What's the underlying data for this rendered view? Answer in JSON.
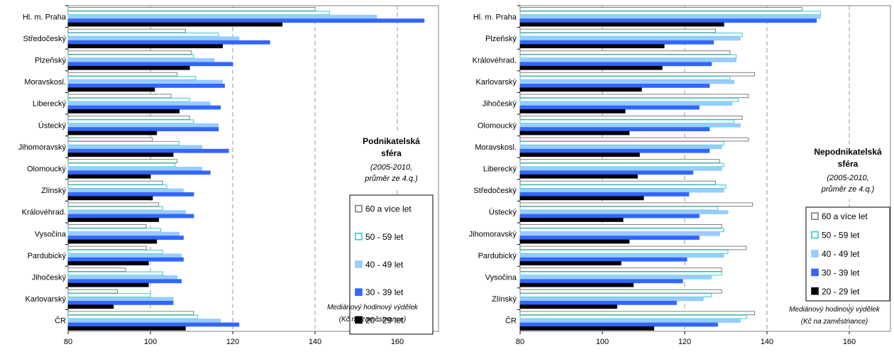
{
  "chart_data": [
    {
      "type": "bar",
      "orientation": "horizontal",
      "title": "Podnikatelská sféra",
      "subtitle": [
        "(2005-2010,",
        "průměr ze 4.q.)"
      ],
      "note": [
        "Mediánový hodinový výdělek",
        "(Kč na zaměstnance)"
      ],
      "xlim": [
        80,
        170
      ],
      "xticks": [
        80,
        100,
        120,
        140,
        160
      ],
      "grid": "vertical dashed",
      "categories": [
        "Hl. m. Praha",
        "Středočeský",
        "Plzeňský",
        "Moravskosl.",
        "Liberecký",
        "Ústecký",
        "Jihomoravský",
        "Olomoucký",
        "Zlínský",
        "Královéhrad.",
        "Vysočina",
        "Pardubický",
        "Jihočeský",
        "Karlovarský",
        "ČR"
      ],
      "series": [
        {
          "name": "60 a více let",
          "values": [
            140.0,
            108.5,
            110.0,
            106.5,
            105.0,
            109.5,
            100.5,
            106.5,
            103.0,
            102.0,
            99.0,
            99.0,
            94.0,
            92.0,
            110.5
          ]
        },
        {
          "name": "50 - 59 let",
          "values": [
            143.5,
            116.5,
            110.5,
            111.0,
            109.5,
            110.5,
            107.0,
            106.0,
            104.0,
            103.0,
            102.5,
            103.0,
            103.0,
            100.0,
            111.5
          ]
        },
        {
          "name": "40 - 49 let",
          "values": [
            155.0,
            121.5,
            115.5,
            117.5,
            114.5,
            116.5,
            112.5,
            112.5,
            108.0,
            108.5,
            107.0,
            107.5,
            106.5,
            105.5,
            117.0
          ]
        },
        {
          "name": "30 - 39 let",
          "values": [
            166.5,
            129.0,
            120.0,
            118.0,
            117.0,
            116.5,
            119.0,
            114.5,
            110.5,
            110.5,
            108.0,
            108.0,
            107.5,
            105.5,
            121.5
          ]
        },
        {
          "name": "20 - 29 let",
          "values": [
            132.0,
            117.5,
            109.5,
            101.0,
            107.0,
            101.5,
            105.5,
            100.0,
            100.5,
            102.0,
            101.5,
            99.5,
            99.5,
            91.0,
            108.5
          ]
        }
      ],
      "legend": "right"
    },
    {
      "type": "bar",
      "orientation": "horizontal",
      "title": "Nepodnikatelská sféra",
      "subtitle": [
        "(2005-2010,",
        "průměr ze 4.q.)"
      ],
      "note": [
        "Mediánový hodinový výdělek",
        "(Kč na zaměstnance)"
      ],
      "xlim": [
        80,
        170
      ],
      "xticks": [
        80,
        100,
        120,
        140,
        160
      ],
      "grid": "vertical dashed",
      "categories": [
        "Hl. m. Praha",
        "Plzeňský",
        "Královéhrad.",
        "Karlovarský",
        "Jihočeský",
        "Olomoucký",
        "Moravskosl.",
        "Liberecký",
        "Středočeský",
        "Ústecký",
        "Jihomoravský",
        "Pardubický",
        "Vysočina",
        "Zlínský",
        "ČR"
      ],
      "series": [
        {
          "name": "60 a více let",
          "values": [
            148.5,
            127.5,
            131.0,
            137.0,
            135.5,
            134.0,
            135.5,
            128.5,
            127.5,
            136.5,
            129.0,
            135.0,
            129.0,
            129.0,
            137.0
          ]
        },
        {
          "name": "50 - 59 let",
          "values": [
            153.0,
            134.0,
            132.5,
            131.0,
            133.0,
            132.0,
            129.5,
            129.5,
            130.0,
            128.0,
            129.5,
            130.5,
            129.0,
            126.5,
            135.0
          ]
        },
        {
          "name": "40 - 49 let",
          "values": [
            153.0,
            133.5,
            132.5,
            132.0,
            131.5,
            133.5,
            129.0,
            129.0,
            129.5,
            130.5,
            128.5,
            129.5,
            126.5,
            124.5,
            133.5
          ]
        },
        {
          "name": "30 - 39 let",
          "values": [
            152.0,
            127.0,
            126.5,
            126.0,
            123.5,
            126.0,
            126.0,
            122.0,
            121.0,
            123.5,
            123.5,
            120.5,
            119.5,
            118.0,
            128.0
          ]
        },
        {
          "name": "20 - 29 let",
          "values": [
            129.5,
            115.0,
            114.5,
            109.5,
            105.5,
            106.5,
            109.0,
            108.5,
            110.0,
            105.0,
            106.5,
            104.5,
            107.5,
            103.5,
            112.5
          ]
        }
      ],
      "legend": "right"
    }
  ],
  "colors": {
    "series": [
      "#ffffff",
      "#ffffff",
      "#99ccff",
      "#3366ff",
      "#000000"
    ],
    "series_stroke": [
      "#7f7f7f",
      "#33cccc",
      "#99ccff",
      "#3366ff",
      "#000000"
    ]
  }
}
